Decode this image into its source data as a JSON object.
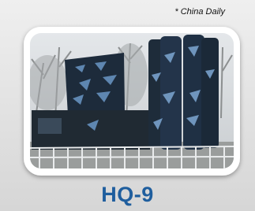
{
  "credit": "* China Daily",
  "caption": "HQ-9"
}
